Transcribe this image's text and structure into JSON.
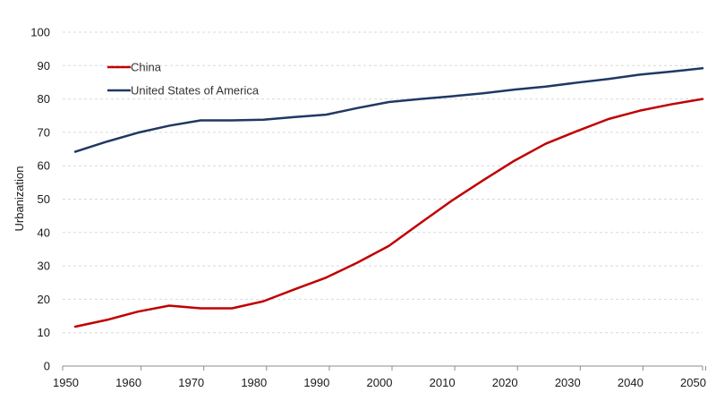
{
  "chart_data": {
    "type": "line",
    "title": "",
    "xlabel": "",
    "ylabel": "Urbanization",
    "ylim": [
      0,
      100
    ],
    "yticks": [
      "0",
      "10",
      "20",
      "30",
      "40",
      "50",
      "60",
      "70",
      "80",
      "90",
      "100"
    ],
    "xlim": [
      1950,
      2052
    ],
    "xticks": [
      "1950",
      "1960",
      "1970",
      "1980",
      "1990",
      "2000",
      "2010",
      "2020",
      "2030",
      "2040",
      "2050"
    ],
    "grid": "horizontal dashed",
    "legend_position": "top-left",
    "series": [
      {
        "name": "China",
        "color": "#c00000",
        "x": [
          1952,
          1957,
          1962,
          1967,
          1972,
          1977,
          1982,
          1987,
          1992,
          1997,
          2002,
          2007,
          2012,
          2017,
          2022,
          2027,
          2032,
          2037,
          2042,
          2047,
          2052
        ],
        "values": [
          11.8,
          13.8,
          16.3,
          18.1,
          17.3,
          17.3,
          19.4,
          23.0,
          26.5,
          31.0,
          36.0,
          42.8,
          49.5,
          55.6,
          61.5,
          66.6,
          70.4,
          74.0,
          76.5,
          78.4,
          80.0
        ]
      },
      {
        "name": "United States of America",
        "color": "#1f3864",
        "x": [
          1952,
          1957,
          1962,
          1967,
          1972,
          1977,
          1982,
          1987,
          1992,
          1997,
          2002,
          2007,
          2012,
          2017,
          2022,
          2027,
          2032,
          2037,
          2042,
          2047,
          2052
        ],
        "values": [
          64.2,
          67.2,
          69.9,
          72.0,
          73.6,
          73.6,
          73.8,
          74.6,
          75.3,
          77.3,
          79.1,
          80.0,
          80.8,
          81.7,
          82.8,
          83.7,
          84.9,
          86.0,
          87.3,
          88.2,
          89.2
        ]
      }
    ]
  }
}
